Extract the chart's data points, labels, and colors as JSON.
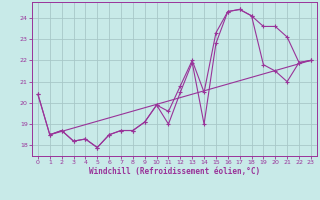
{
  "xlabel": "Windchill (Refroidissement éolien,°C)",
  "bg_color": "#c8eae8",
  "grid_color": "#a8c8c8",
  "line_color": "#993399",
  "spine_color": "#993399",
  "tick_color": "#993399",
  "xlim": [
    -0.5,
    23.5
  ],
  "ylim": [
    17.5,
    24.75
  ],
  "yticks": [
    18,
    19,
    20,
    21,
    22,
    23,
    24
  ],
  "xticks": [
    0,
    1,
    2,
    3,
    4,
    5,
    6,
    7,
    8,
    9,
    10,
    11,
    12,
    13,
    14,
    15,
    16,
    17,
    18,
    19,
    20,
    21,
    22,
    23
  ],
  "curve1_x": [
    0,
    1,
    2,
    3,
    4,
    5,
    6,
    7,
    8,
    9,
    10,
    11,
    12,
    13,
    14,
    15,
    16,
    17,
    18,
    19,
    20,
    21,
    22,
    23
  ],
  "curve1_y": [
    20.4,
    18.5,
    18.7,
    18.2,
    18.3,
    17.9,
    18.5,
    18.7,
    18.7,
    19.1,
    19.9,
    19.0,
    20.5,
    21.9,
    19.0,
    22.8,
    24.3,
    24.4,
    24.1,
    23.6,
    23.6,
    23.1,
    21.9,
    22.0
  ],
  "curve2_x": [
    0,
    1,
    2,
    3,
    4,
    5,
    6,
    7,
    8,
    9,
    10,
    11,
    12,
    13,
    14,
    15,
    16,
    17,
    18,
    19,
    20,
    21,
    22,
    23
  ],
  "curve2_y": [
    20.4,
    18.5,
    18.7,
    18.2,
    18.3,
    17.9,
    18.5,
    18.7,
    18.7,
    19.1,
    19.9,
    19.6,
    20.8,
    22.0,
    20.5,
    23.3,
    24.3,
    24.4,
    24.1,
    21.8,
    21.5,
    21.0,
    21.9,
    22.0
  ],
  "line3_x": [
    1,
    23
  ],
  "line3_y": [
    18.5,
    22.0
  ]
}
